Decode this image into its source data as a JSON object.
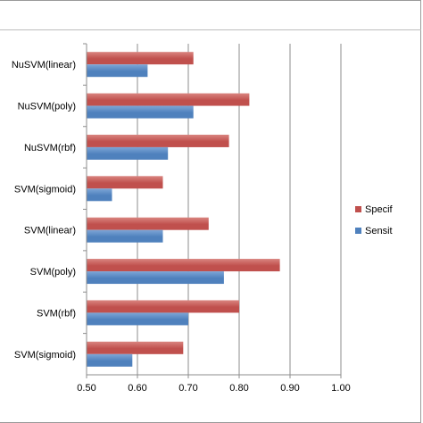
{
  "chart_data": {
    "type": "bar",
    "orientation": "horizontal",
    "title": "",
    "xlabel": "",
    "ylabel": "",
    "categories": [
      "NuSVM(linear)",
      "NuSVM(poly)",
      "NuSVM(rbf)",
      "SVM(sigmoid)",
      "SVM(linear)",
      "SVM(poly)",
      "SVM(rbf)",
      "SVM(sigmoid)"
    ],
    "series": [
      {
        "name": "Specif",
        "color": "#c0504d",
        "values": [
          0.71,
          0.82,
          0.78,
          0.65,
          0.74,
          0.88,
          0.8,
          0.69
        ]
      },
      {
        "name": "Sensit",
        "color": "#4f81bd",
        "values": [
          0.62,
          0.71,
          0.66,
          0.55,
          0.65,
          0.77,
          0.7,
          0.59
        ]
      }
    ],
    "xlim": [
      0.5,
      1.0
    ],
    "xticks": [
      "0.50",
      "0.60",
      "0.70",
      "0.80",
      "0.90",
      "1.00"
    ],
    "grid": "vertical",
    "legend": "right"
  }
}
